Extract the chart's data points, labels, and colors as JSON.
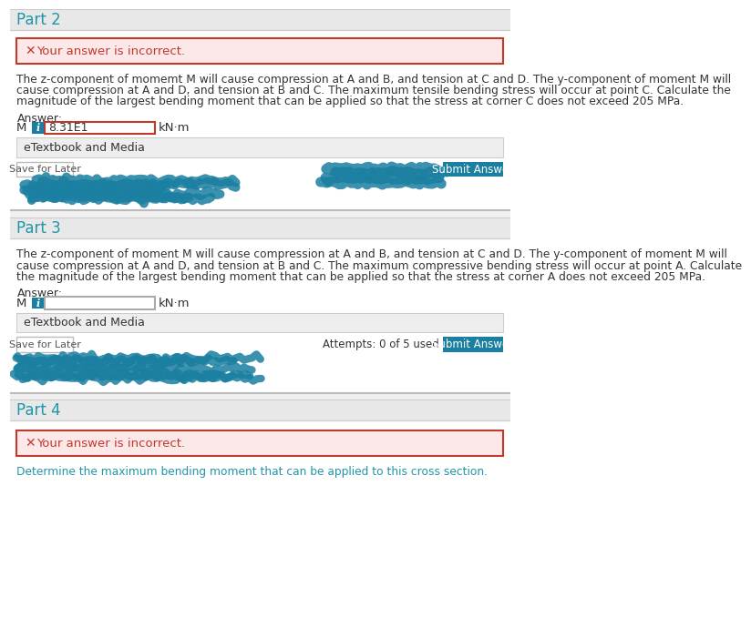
{
  "page_bg": "#f0f0f0",
  "section_bg": "#e8e8e8",
  "white": "#ffffff",
  "part2_title": "Part 2",
  "part3_title": "Part 3",
  "part4_title": "Part 4",
  "title_color": "#2196a8",
  "error_bg": "#fce8e8",
  "error_border": "#c0392b",
  "error_text": "Your answer is incorrect.",
  "error_icon": "✕",
  "error_text_color": "#c0392b",
  "body_color": "#333333",
  "blue_highlight": "#2196a8",
  "part2_line1": "The z-component of momemt M will cause compression at A and B, and tension at C and D. The y-component of moment M will",
  "part2_line2": "cause compression at A and D, and tension at B and C. The maximum tensile bending stress will occur at point C. Calculate the",
  "part2_line3": "magnitude of the largest bending moment that can be applied so that the stress at corner C does not exceed 205 MPa.",
  "part3_line1": "The z-component of moment M will cause compression at A and B, and tension at C and D. The y-component of moment M will",
  "part3_line2": "cause compression at A and D, and tension at B and C. The maximum compressive bending stress will occur at point A. Calculate",
  "part3_line3": "the magnitude of the largest bending moment that can be applied so that the stress at corner A does not exceed 205 MPa.",
  "part4_body": "Determine the maximum bending moment that can be applied to this cross section.",
  "answer_label": "Answer:",
  "kNm": "kN·m",
  "answer_value": "8.31E1",
  "etextbook": "eTextbook and Media",
  "save_later": "Save for Later",
  "submit_answer": "Submit Answer",
  "attempts_text": "Attempts: 0 of 5 used",
  "submit_color": "#1a7fa0",
  "info_color": "#1a7fa0",
  "separator_color": "#cccccc",
  "etextbook_bg": "#eeeeee",
  "input_red_border": "#c0392b",
  "input_gray_border": "#aaaaaa"
}
